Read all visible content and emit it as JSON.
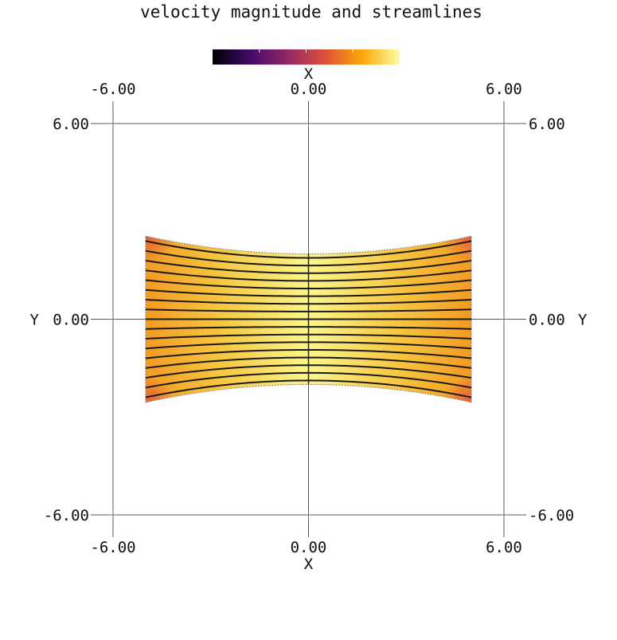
{
  "chart_data": {
    "type": "heatmap",
    "title": "velocity magnitude and streamlines",
    "colormap": "inferno",
    "colorbar": {
      "position": "top",
      "tick_count": 3,
      "colors": [
        "#000004",
        "#420a68",
        "#932667",
        "#dd513a",
        "#fca50a",
        "#fcffa4"
      ]
    },
    "x_axis": {
      "label": "X",
      "ticks": [
        "-6.00",
        "0.00",
        "6.00"
      ],
      "tick_values": [
        -6,
        0,
        6
      ],
      "range": [
        -6,
        6
      ]
    },
    "y_axis": {
      "label": "Y",
      "ticks": [
        "-6.00",
        "0.00",
        "6.00"
      ],
      "tick_values": [
        -6,
        0,
        6
      ],
      "range": [
        -6,
        6
      ]
    },
    "domain": {
      "x_range": [
        -5,
        5
      ],
      "edge_half_height": 2.55,
      "center_half_height": 2.0,
      "shape": "symmetric duct, narrowest at x = 0"
    },
    "velocity_field": {
      "description": "flow from left to right, highest speed at the throat (x = 0), lower speed near the inlet/outlet corners",
      "colors": {
        "throat": "#fbf58c",
        "mid": "#f6c53e",
        "edge": "#f39a24",
        "corner": "#dd5a3c"
      }
    },
    "streamlines": {
      "count": 17,
      "direction": "+x",
      "x_range": [
        -5,
        5
      ]
    }
  }
}
